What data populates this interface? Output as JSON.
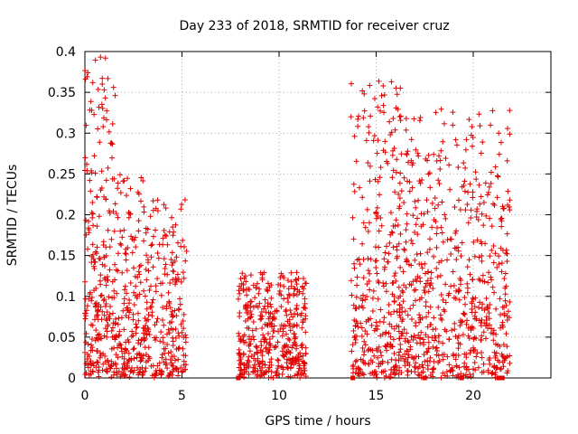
{
  "chart_data": {
    "type": "scatter",
    "title": "Day 233 of 2018, SRMTID for receiver cruz",
    "xlabel": "GPS time / hours",
    "ylabel": "SRMTID / TECUs",
    "xlim": [
      0,
      24
    ],
    "ylim": [
      0,
      0.4
    ],
    "x_ticks": [
      0,
      5,
      10,
      15,
      20
    ],
    "y_ticks": [
      0,
      0.05,
      0.1,
      0.15,
      0.2,
      0.25,
      0.3,
      0.35,
      0.4
    ],
    "x_tick_labels": [
      "0",
      "5",
      "10",
      "15",
      "20"
    ],
    "y_tick_labels": [
      "0",
      "0.05",
      "0.1",
      "0.15",
      "0.2",
      "0.25",
      "0.3",
      "0.35",
      "0.4"
    ],
    "grid": true,
    "marker": "+",
    "color": "#e00000",
    "clusters": [
      {
        "x_range": [
          0.0,
          1.6
        ],
        "n": 260,
        "median": 0.11,
        "max": 0.395
      },
      {
        "x_range": [
          1.6,
          3.0
        ],
        "n": 170,
        "median": 0.07,
        "max": 0.25
      },
      {
        "x_range": [
          3.0,
          5.3
        ],
        "n": 240,
        "median": 0.065,
        "max": 0.22
      },
      {
        "x_range": [
          7.9,
          11.4
        ],
        "n": 420,
        "median": 0.045,
        "max": 0.13
      },
      {
        "x_range": [
          13.7,
          16.3
        ],
        "n": 330,
        "median": 0.1,
        "max": 0.365
      },
      {
        "x_range": [
          16.3,
          21.9
        ],
        "n": 640,
        "median": 0.09,
        "max": 0.33
      }
    ],
    "baseline_points": [
      {
        "x": 7.9,
        "y": 0
      },
      {
        "x": 13.8,
        "y": 0
      },
      {
        "x": 17.5,
        "y": 0
      },
      {
        "x": 19.4,
        "y": 0
      },
      {
        "x": 21.3,
        "y": 0
      },
      {
        "x": 21.5,
        "y": 0
      }
    ]
  }
}
